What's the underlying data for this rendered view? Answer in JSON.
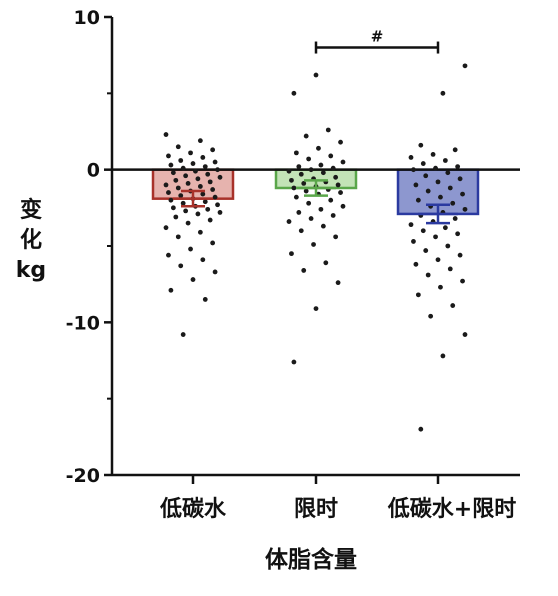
{
  "chart_data": {
    "type": "bar",
    "title": "",
    "ylabel_lines": [
      "变",
      "化",
      "kg"
    ],
    "xlabel": "体脂含量",
    "ylim": [
      -20,
      10
    ],
    "yticks": [
      10,
      0,
      -10,
      -20
    ],
    "ytick_labels": [
      "10",
      "0",
      "-10",
      "-20"
    ],
    "categories": [
      "低碳水",
      "限时",
      "低碳水+限时"
    ],
    "colors": {
      "bars_fill": [
        "#e6b3ae",
        "#c3e3b7",
        "#8d97cf"
      ],
      "bars_edge": [
        "#a8322a",
        "#5aa64a",
        "#2b3aa0"
      ],
      "points": "#1a1a1a",
      "axis": "#111111"
    },
    "values": [
      -1.9,
      -1.2,
      -2.9
    ],
    "sem": [
      0.5,
      0.5,
      0.6
    ],
    "points": [
      [
        2.3,
        1.9,
        1.5,
        1.3,
        1.1,
        0.9,
        0.8,
        0.6,
        0.5,
        0.4,
        0.3,
        0.2,
        0.1,
        0.0,
        -0.1,
        -0.2,
        -0.3,
        -0.4,
        -0.5,
        -0.6,
        -0.7,
        -0.8,
        -0.9,
        -1.0,
        -1.1,
        -1.2,
        -1.3,
        -1.4,
        -1.5,
        -1.6,
        -1.7,
        -1.8,
        -1.9,
        -2.0,
        -2.1,
        -2.2,
        -2.3,
        -2.4,
        -2.5,
        -2.6,
        -2.7,
        -2.8,
        -2.9,
        -3.1,
        -3.3,
        -3.5,
        -3.8,
        -4.1,
        -4.4,
        -4.8,
        -5.2,
        -5.6,
        -5.9,
        -6.3,
        -6.7,
        -7.2,
        -7.9,
        -8.5,
        -10.8
      ],
      [
        6.2,
        5.0,
        2.6,
        2.2,
        1.8,
        1.4,
        1.1,
        0.9,
        0.7,
        0.5,
        0.3,
        0.2,
        0.1,
        0.0,
        -0.1,
        -0.2,
        -0.3,
        -0.5,
        -0.6,
        -0.7,
        -0.8,
        -0.9,
        -1.0,
        -1.1,
        -1.2,
        -1.3,
        -1.4,
        -1.5,
        -1.6,
        -1.8,
        -2.0,
        -2.2,
        -2.4,
        -2.6,
        -2.8,
        -3.0,
        -3.2,
        -3.4,
        -3.7,
        -4.0,
        -4.4,
        -4.9,
        -5.5,
        -6.1,
        -6.6,
        -7.4,
        -9.1,
        -12.6
      ],
      [
        6.8,
        5.0,
        1.6,
        1.3,
        1.0,
        0.8,
        0.6,
        0.4,
        0.2,
        0.1,
        0.0,
        -0.2,
        -0.4,
        -0.6,
        -0.8,
        -1.0,
        -1.2,
        -1.4,
        -1.6,
        -1.8,
        -2.0,
        -2.2,
        -2.4,
        -2.6,
        -2.8,
        -3.0,
        -3.2,
        -3.4,
        -3.6,
        -3.8,
        -4.0,
        -4.2,
        -4.4,
        -4.7,
        -5.0,
        -5.3,
        -5.6,
        -5.9,
        -6.2,
        -6.5,
        -6.9,
        -7.3,
        -7.7,
        -8.2,
        -8.9,
        -9.6,
        -10.8,
        -12.2,
        -17.0
      ]
    ],
    "significance": {
      "from": 1,
      "to": 2,
      "y": 8.0,
      "label": "#"
    }
  }
}
